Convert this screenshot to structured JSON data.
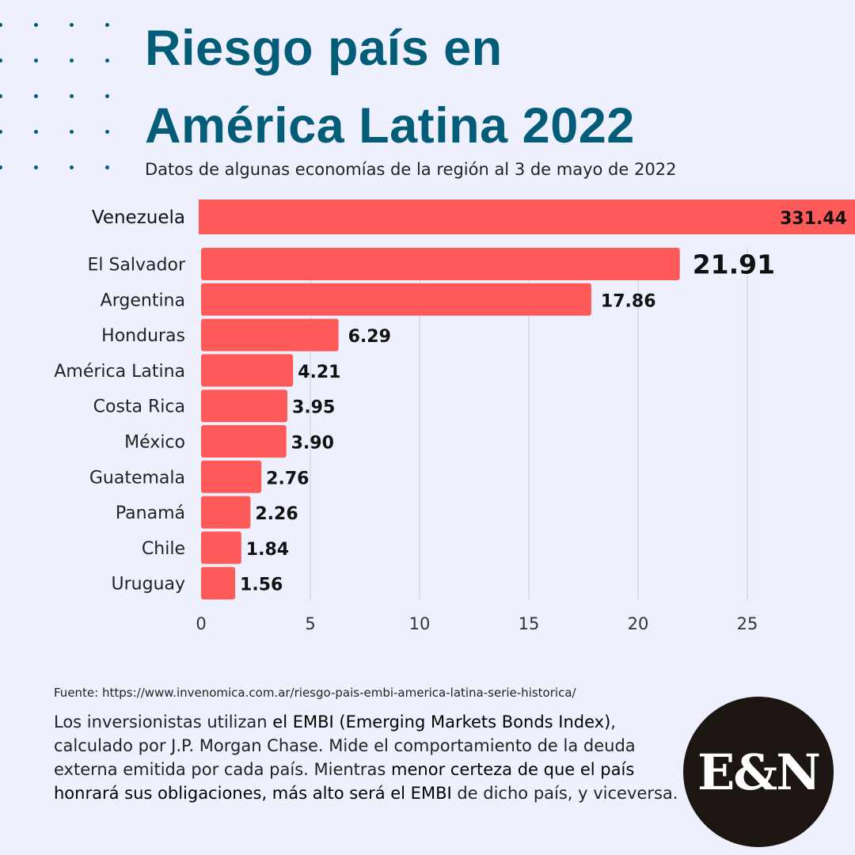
{
  "header": {
    "title_line1": "Riesgo país en",
    "title_line2": "América Latina 2022",
    "subtitle": "Datos de algunas economías de la región al 3 de mayo de 2022",
    "title_color": "#035c78"
  },
  "chart_data": {
    "type": "bar",
    "orientation": "horizontal",
    "title": "Riesgo país en América Latina 2022",
    "subtitle": "Datos de algunas economías de la región al 3 de mayo de 2022",
    "xlabel": "",
    "ylabel": "",
    "xlim": [
      0,
      30
    ],
    "xticks": [
      0,
      5,
      10,
      15,
      20,
      25
    ],
    "grid": true,
    "bar_color": "#ff5a5a",
    "categories": [
      "Venezuela",
      "El Salvador",
      "Argentina",
      "Honduras",
      "América Latina",
      "Costa Rica",
      "México",
      "Guatemala",
      "Panamá",
      "Chile",
      "Uruguay"
    ],
    "values": [
      331.44,
      21.91,
      17.86,
      6.29,
      4.21,
      3.95,
      3.9,
      2.76,
      2.26,
      1.84,
      1.56
    ],
    "labels": [
      "331.44",
      "21.91",
      "17.86",
      "6.29",
      "4.21",
      "3.95",
      "3.90",
      "2.76",
      "2.26",
      "1.84",
      "1.56"
    ],
    "annotations": [
      "Venezuela bar truncated (exceeds axis range)"
    ]
  },
  "footer": {
    "source": "Fuente: https://www.invenomica.com.ar/riesgo-pais-embi-america-latina-serie-historica/",
    "desc_p1": "Los inversionistas utilizan ",
    "desc_b1": "el EMBI (Emerging Markets Bonds Index)",
    "desc_p2": ", calculado por J.P. Morgan Chase. Mide el comportamiento de la deuda externa emitida por cada país. Mientras ",
    "desc_b2": "menor certeza de que el país honrará sus obligaciones, más alto será el EMBI",
    "desc_p3": " de dicho país, y viceversa."
  },
  "logo": {
    "text": "E&N"
  }
}
